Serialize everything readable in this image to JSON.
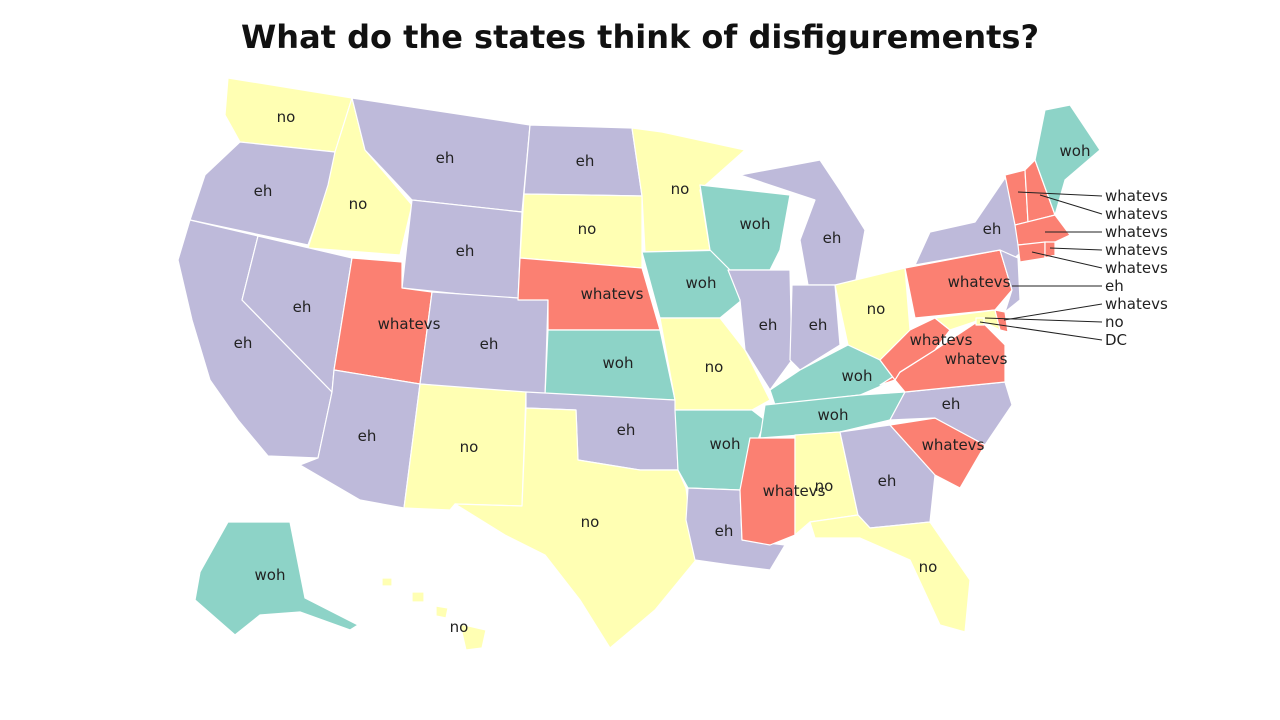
{
  "title": "What do the states think of disfigurements?",
  "colors": {
    "no": "#ffffb3",
    "eh": "#bebada",
    "whatevs": "#fb8072",
    "woh": "#8dd3c7"
  },
  "states": [
    {
      "id": "WA",
      "value": "no"
    },
    {
      "id": "OR",
      "value": "eh"
    },
    {
      "id": "CA",
      "value": "eh"
    },
    {
      "id": "ID",
      "value": "no"
    },
    {
      "id": "NV",
      "value": "eh"
    },
    {
      "id": "MT",
      "value": "eh"
    },
    {
      "id": "WY",
      "value": "eh"
    },
    {
      "id": "UT",
      "value": "whatevs"
    },
    {
      "id": "AZ",
      "value": "eh"
    },
    {
      "id": "CO",
      "value": "eh"
    },
    {
      "id": "NM",
      "value": "no"
    },
    {
      "id": "ND",
      "value": "eh"
    },
    {
      "id": "SD",
      "value": "no"
    },
    {
      "id": "NE",
      "value": "whatevs"
    },
    {
      "id": "KS",
      "value": "woh"
    },
    {
      "id": "OK",
      "value": "eh"
    },
    {
      "id": "TX",
      "value": "no"
    },
    {
      "id": "MN",
      "value": "no"
    },
    {
      "id": "IA",
      "value": "woh"
    },
    {
      "id": "MO",
      "value": "no"
    },
    {
      "id": "AR",
      "value": "woh"
    },
    {
      "id": "LA",
      "value": "eh"
    },
    {
      "id": "WI",
      "value": "woh"
    },
    {
      "id": "IL",
      "value": "eh"
    },
    {
      "id": "MI",
      "value": "eh"
    },
    {
      "id": "IN",
      "value": "eh"
    },
    {
      "id": "OH",
      "value": "no"
    },
    {
      "id": "KY",
      "value": "woh"
    },
    {
      "id": "TN",
      "value": "woh"
    },
    {
      "id": "MS",
      "value": "whatevs"
    },
    {
      "id": "AL",
      "value": "no"
    },
    {
      "id": "GA",
      "value": "eh"
    },
    {
      "id": "FL",
      "value": "no"
    },
    {
      "id": "SC",
      "value": "whatevs"
    },
    {
      "id": "NC",
      "value": "eh"
    },
    {
      "id": "VA",
      "value": "whatevs"
    },
    {
      "id": "WV",
      "value": "whatevs"
    },
    {
      "id": "PA",
      "value": "whatevs"
    },
    {
      "id": "NY",
      "value": "eh"
    },
    {
      "id": "ME",
      "value": "woh"
    },
    {
      "id": "VT",
      "value": "whatevs"
    },
    {
      "id": "NH",
      "value": "whatevs"
    },
    {
      "id": "MA",
      "value": "whatevs"
    },
    {
      "id": "CT",
      "value": "whatevs"
    },
    {
      "id": "RI",
      "value": "whatevs"
    },
    {
      "id": "NJ",
      "value": "eh"
    },
    {
      "id": "DE",
      "value": "whatevs"
    },
    {
      "id": "MD",
      "value": "no"
    },
    {
      "id": "DC",
      "value": "no"
    },
    {
      "id": "AK",
      "value": "woh"
    },
    {
      "id": "HI",
      "value": "no"
    }
  ],
  "callouts": [
    {
      "id": "VT",
      "text": "whatevs"
    },
    {
      "id": "NH",
      "text": "whatevs"
    },
    {
      "id": "MA",
      "text": "whatevs"
    },
    {
      "id": "RI",
      "text": "whatevs"
    },
    {
      "id": "CT",
      "text": "whatevs"
    },
    {
      "id": "NJ",
      "text": "eh"
    },
    {
      "id": "DE",
      "text": "whatevs"
    },
    {
      "id": "MD",
      "text": "no"
    },
    {
      "id": "DC",
      "text": "DC"
    }
  ]
}
